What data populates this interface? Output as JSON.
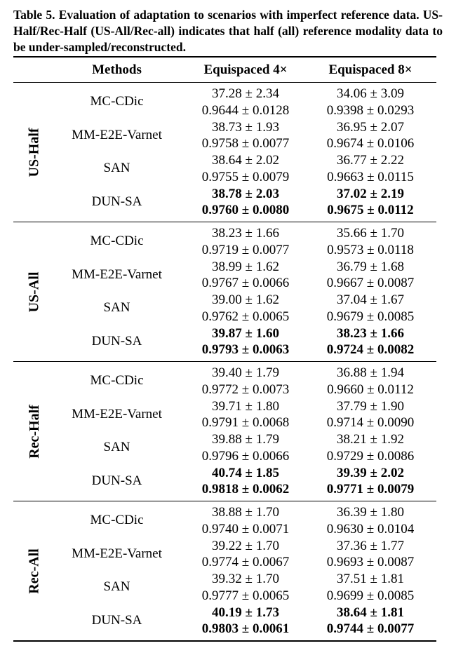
{
  "caption": "Table 5. Evaluation of adaptation to scenarios with imperfect reference data. US-Half/Rec-Half (US-All/Rec-all) indicates that half (all) reference modality data to be under-sampled/reconstructed.",
  "header": {
    "methods": "Methods",
    "col1": "Equispaced 4×",
    "col2": "Equispaced 8×"
  },
  "groups": [
    {
      "label": "US-Half",
      "rows": [
        {
          "method": "MC-CDic",
          "c1_psnr": "37.28 ± 2.34",
          "c1_ssim": "0.9644 ± 0.0128",
          "c2_psnr": "34.06 ± 3.09",
          "c2_ssim": "0.9398 ± 0.0293"
        },
        {
          "method": "MM-E2E-Varnet",
          "c1_psnr": "38.73 ± 1.93",
          "c1_ssim": "0.9758 ± 0.0077",
          "c2_psnr": "36.95 ± 2.07",
          "c2_ssim": "0.9674 ± 0.0106"
        },
        {
          "method": "SAN",
          "c1_psnr": "38.64 ± 2.02",
          "c1_ssim": "0.9755 ± 0.0079",
          "c2_psnr": "36.77 ± 2.22",
          "c2_ssim": "0.9663 ± 0.0115"
        },
        {
          "method": "DUN-SA",
          "c1_psnr": "38.78 ± 2.03",
          "c1_ssim": "0.9760 ± 0.0080",
          "c2_psnr": "37.02 ± 2.19",
          "c2_ssim": "0.9675 ± 0.0112"
        }
      ]
    },
    {
      "label": "US-All",
      "rows": [
        {
          "method": "MC-CDic",
          "c1_psnr": "38.23 ± 1.66",
          "c1_ssim": "0.9719 ± 0.0077",
          "c2_psnr": "35.66 ± 1.70",
          "c2_ssim": "0.9573 ± 0.0118"
        },
        {
          "method": "MM-E2E-Varnet",
          "c1_psnr": "38.99 ± 1.62",
          "c1_ssim": "0.9767 ± 0.0066",
          "c2_psnr": "36.79 ± 1.68",
          "c2_ssim": "0.9667 ± 0.0087"
        },
        {
          "method": "SAN",
          "c1_psnr": "39.00 ± 1.62",
          "c1_ssim": "0.9762 ± 0.0065",
          "c2_psnr": "37.04 ± 1.67",
          "c2_ssim": "0.9679 ± 0.0085"
        },
        {
          "method": "DUN-SA",
          "c1_psnr": "39.87 ± 1.60",
          "c1_ssim": "0.9793 ± 0.0063",
          "c2_psnr": "38.23 ± 1.66",
          "c2_ssim": "0.9724 ± 0.0082"
        }
      ]
    },
    {
      "label": "Rec-Half",
      "rows": [
        {
          "method": "MC-CDic",
          "c1_psnr": "39.40 ± 1.79",
          "c1_ssim": "0.9772 ± 0.0073",
          "c2_psnr": "36.88 ± 1.94",
          "c2_ssim": "0.9660 ± 0.0112"
        },
        {
          "method": "MM-E2E-Varnet",
          "c1_psnr": "39.71 ± 1.80",
          "c1_ssim": "0.9791 ± 0.0068",
          "c2_psnr": "37.79 ± 1.90",
          "c2_ssim": "0.9714 ± 0.0090"
        },
        {
          "method": "SAN",
          "c1_psnr": "39.88 ± 1.79",
          "c1_ssim": "0.9796 ± 0.0066",
          "c2_psnr": "38.21 ± 1.92",
          "c2_ssim": "0.9729 ± 0.0086"
        },
        {
          "method": "DUN-SA",
          "c1_psnr": "40.74 ± 1.85",
          "c1_ssim": "0.9818 ± 0.0062",
          "c2_psnr": "39.39 ± 2.02",
          "c2_ssim": "0.9771 ± 0.0079"
        }
      ]
    },
    {
      "label": "Rec-All",
      "rows": [
        {
          "method": "MC-CDic",
          "c1_psnr": "38.88 ± 1.70",
          "c1_ssim": "0.9740 ± 0.0071",
          "c2_psnr": "36.39 ± 1.80",
          "c2_ssim": "0.9630 ± 0.0104"
        },
        {
          "method": "MM-E2E-Varnet",
          "c1_psnr": "39.22 ± 1.70",
          "c1_ssim": "0.9774 ± 0.0067",
          "c2_psnr": "37.36 ± 1.77",
          "c2_ssim": "0.9693 ± 0.0087"
        },
        {
          "method": "SAN",
          "c1_psnr": "39.32 ± 1.70",
          "c1_ssim": "0.9777 ± 0.0065",
          "c2_psnr": "37.51 ± 1.81",
          "c2_ssim": "0.9699 ± 0.0085"
        },
        {
          "method": "DUN-SA",
          "c1_psnr": "40.19 ± 1.73",
          "c1_ssim": "0.9803 ± 0.0061",
          "c2_psnr": "38.64 ± 1.81",
          "c2_ssim": "0.9744 ± 0.0077"
        }
      ]
    }
  ]
}
